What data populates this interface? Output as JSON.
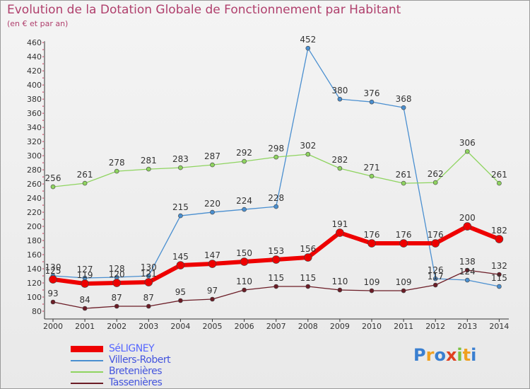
{
  "title": "Evolution de la Dotation Globale de Fonctionnement par Habitant",
  "subtitle": "(en € et par an)",
  "logo_text": "Proxiti",
  "chart_data": {
    "type": "line",
    "title": "Evolution de la Dotation Globale de Fonctionnement par Habitant",
    "subtitle": "(en € et par an)",
    "xlabel": "",
    "ylabel": "",
    "ylim": [
      80,
      460
    ],
    "ytick_step": 20,
    "grid": false,
    "legend_position": "bottom-left",
    "categories": [
      "2000",
      "2001",
      "2002",
      "2003",
      "2004",
      "2005",
      "2006",
      "2007",
      "2008",
      "2009",
      "2010",
      "2011",
      "2012",
      "2013",
      "2014"
    ],
    "series": [
      {
        "name": "Villers-Robert",
        "color": "#4a8fd0",
        "values": [
          130,
          127,
          128,
          130,
          215,
          220,
          224,
          228,
          452,
          380,
          376,
          368,
          126,
          124,
          115
        ]
      },
      {
        "name": "Bretenières",
        "color": "#8fd460",
        "values": [
          256,
          261,
          278,
          281,
          283,
          287,
          292,
          298,
          302,
          282,
          271,
          261,
          262,
          306,
          261
        ]
      },
      {
        "name": "Tassenières",
        "color": "#6b1c26",
        "values": [
          93,
          84,
          87,
          87,
          95,
          97,
          110,
          115,
          115,
          110,
          109,
          109,
          117,
          138,
          132
        ]
      },
      {
        "name": "SéLIGNEY",
        "color": "#ee0000",
        "values": [
          125,
          119,
          120,
          121,
          145,
          147,
          150,
          153,
          156,
          191,
          176,
          176,
          176,
          200,
          182
        ]
      }
    ],
    "legend_order": [
      "SéLIGNEY",
      "Villers-Robert",
      "Bretenières",
      "Tassenières"
    ]
  }
}
